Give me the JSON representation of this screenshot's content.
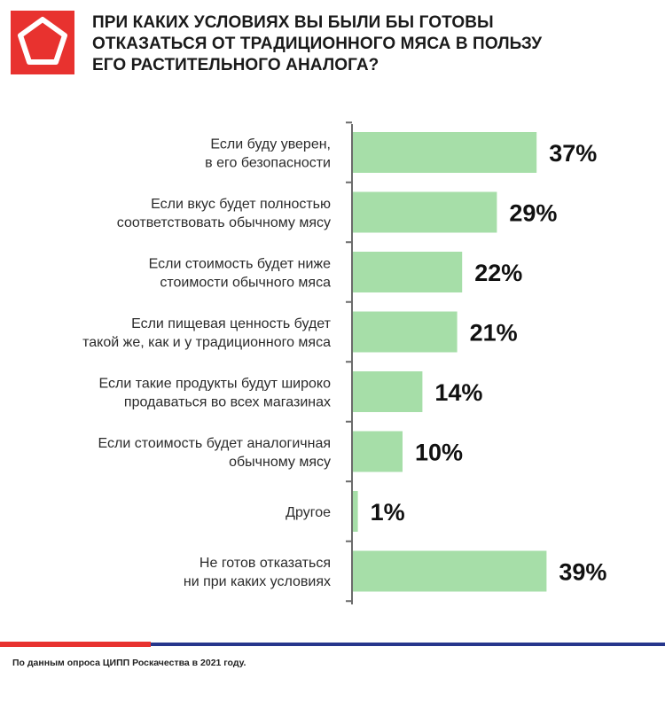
{
  "header": {
    "logo_icon": "roskachestvo-pentagon-logo",
    "title_lines": [
      "ПРИ КАКИХ УСЛОВИЯХ ВЫ БЫЛИ БЫ ГОТОВЫ",
      "ОТКАЗАТЬСЯ ОТ ТРАДИЦИОННОГО МЯСА В ПОЛЬЗУ",
      "ЕГО РАСТИТЕЛЬНОГО АНАЛОГА?"
    ]
  },
  "chart_data": {
    "type": "bar",
    "orientation": "horizontal",
    "title": "ПРИ КАКИХ УСЛОВИЯХ ВЫ БЫЛИ БЫ ГОТОВЫ ОТКАЗАТЬСЯ ОТ ТРАДИЦИОННОГО МЯСА В ПОЛЬЗУ ЕГО РАСТИТЕЛЬНОГО АНАЛОГА?",
    "categories": [
      [
        "Если буду уверен,",
        "в его безопасности"
      ],
      [
        "Если вкус будет полностью",
        "соответствовать обычному мясу"
      ],
      [
        "Если стоимость будет ниже",
        "стоимости обычного мяса"
      ],
      [
        "Если пищевая ценность будет",
        "такой же, как и у традиционного мяса"
      ],
      [
        "Если такие продукты будут широко",
        "продаваться во всех магазинах"
      ],
      [
        "Если стоимость будет аналогичная",
        "обычному мясу"
      ],
      [
        "Другое"
      ],
      [
        "Не готов отказаться",
        "ни при каких условиях"
      ]
    ],
    "values": [
      37,
      29,
      22,
      21,
      14,
      10,
      1,
      39
    ],
    "value_labels": [
      "37%",
      "29%",
      "22%",
      "21%",
      "14%",
      "10%",
      "1%",
      "39%"
    ],
    "xlim": [
      0,
      40
    ],
    "grid": false,
    "bar_color": "#a6dea8",
    "axis_color": "#6b6b6b"
  },
  "footer": {
    "source": "По данным опроса ЦИПП Роскачества в 2021 году.",
    "accent_red": "#e8322f",
    "accent_blue": "#26368c"
  }
}
